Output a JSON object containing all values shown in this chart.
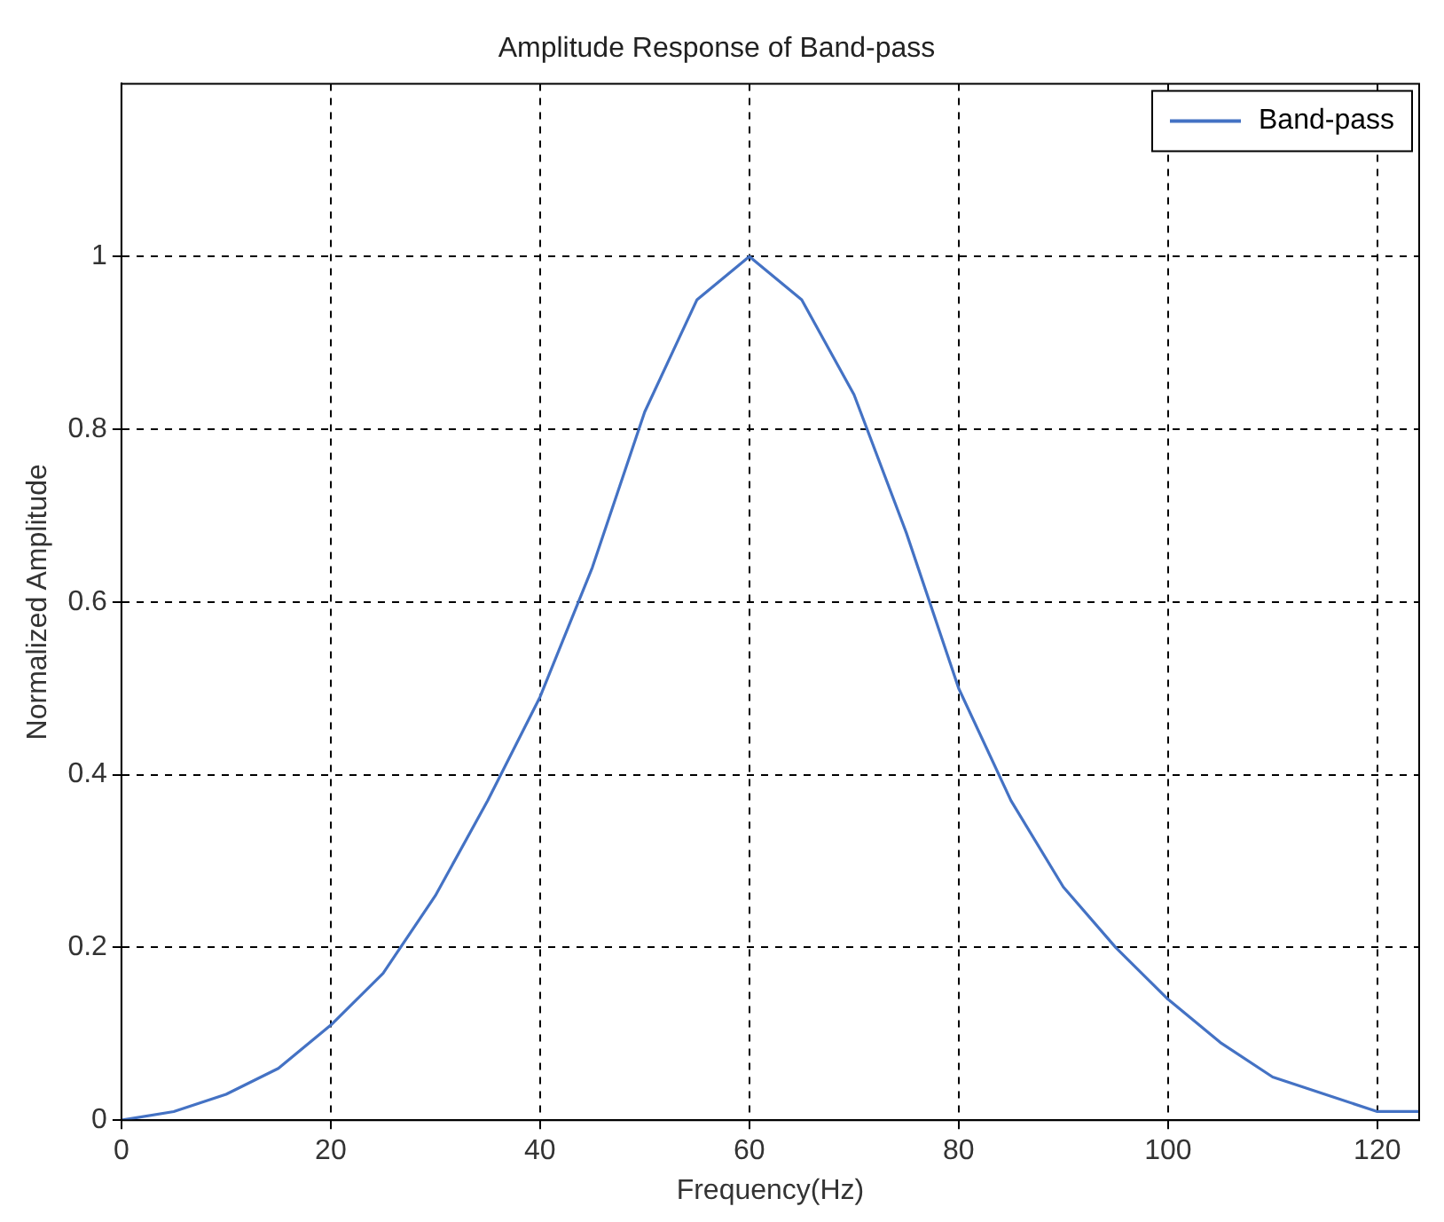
{
  "chart_data": {
    "type": "line",
    "title": "Amplitude Response of Band-pass",
    "xlabel": "Frequency(Hz)",
    "ylabel": "Normalized Amplitude",
    "x": [
      0,
      5,
      10,
      15,
      20,
      25,
      30,
      35,
      40,
      45,
      50,
      55,
      60,
      65,
      70,
      75,
      80,
      85,
      90,
      95,
      100,
      105,
      110,
      115,
      120,
      124
    ],
    "series": [
      {
        "name": "Band-pass",
        "color": "#4472c4",
        "values": [
          0,
          0.01,
          0.03,
          0.06,
          0.11,
          0.17,
          0.26,
          0.37,
          0.49,
          0.64,
          0.82,
          0.95,
          1.0,
          0.95,
          0.84,
          0.68,
          0.5,
          0.37,
          0.27,
          0.2,
          0.14,
          0.09,
          0.05,
          0.03,
          0.01,
          0.01
        ]
      }
    ],
    "xlim": [
      0,
      124
    ],
    "xticks": [
      0,
      20,
      40,
      60,
      80,
      100,
      120
    ],
    "ylim": [
      0,
      1.2
    ],
    "yticks": [
      0,
      0.2,
      0.4,
      0.6,
      0.8,
      1
    ],
    "grid": true,
    "legend": "top right",
    "line_style": "solid",
    "marker": "none"
  }
}
